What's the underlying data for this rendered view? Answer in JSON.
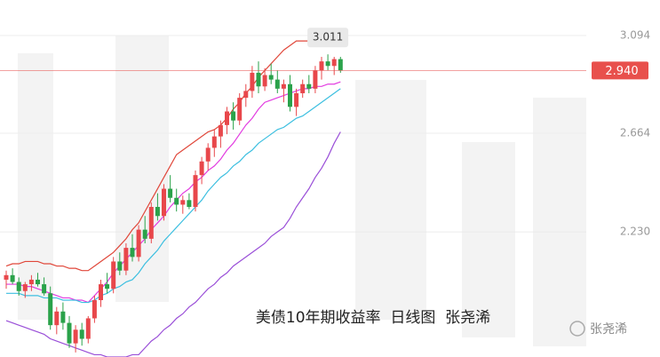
{
  "chart_data": {
    "type": "candlestick",
    "caption": "美债10年期收益率  日线图  张尧浠",
    "watermark": "张尧浠",
    "ylim": [
      1.68,
      3.25
    ],
    "yticks": [
      3.094,
      2.664,
      {
        "value": 2.23,
        "label": "2.230"
      }
    ],
    "grid": true,
    "up_color": "#e8474b",
    "down_color": "#2aa24a",
    "current_price": {
      "value": 2.94,
      "label": "2.940"
    },
    "current_color": "#e8504c",
    "high_annotation": 3.011,
    "open": [
      2.02,
      2.04,
      2.01,
      1.97,
      2.0,
      2.02,
      2.0,
      1.96,
      1.82,
      1.88,
      1.83,
      1.74,
      1.8,
      1.76,
      1.85,
      1.93,
      2.0,
      1.98,
      2.1,
      2.06,
      2.16,
      2.12,
      2.24,
      2.2,
      2.34,
      2.3,
      2.42,
      2.38,
      2.35,
      2.37,
      2.34,
      2.48,
      2.54,
      2.6,
      2.65,
      2.7,
      2.76,
      2.72,
      2.82,
      2.85,
      2.93,
      2.87,
      2.92,
      2.9,
      2.86,
      2.88,
      2.78,
      2.84,
      2.88,
      2.86,
      2.94,
      2.98,
      2.96,
      2.99
    ],
    "high": [
      2.06,
      2.07,
      2.03,
      2.01,
      2.04,
      2.05,
      2.03,
      1.99,
      1.9,
      1.92,
      1.86,
      1.82,
      1.83,
      1.86,
      1.95,
      2.02,
      2.05,
      2.12,
      2.14,
      2.18,
      2.22,
      2.26,
      2.3,
      2.36,
      2.4,
      2.44,
      2.48,
      2.42,
      2.39,
      2.4,
      2.5,
      2.56,
      2.62,
      2.68,
      2.72,
      2.78,
      2.8,
      2.84,
      2.88,
      2.96,
      2.98,
      2.95,
      2.97,
      2.94,
      2.9,
      2.92,
      2.86,
      2.9,
      2.92,
      2.96,
      3.0,
      3.011,
      3.0,
      3.0
    ],
    "low": [
      1.98,
      2.0,
      1.95,
      1.94,
      1.97,
      1.99,
      1.95,
      1.8,
      1.78,
      1.8,
      1.72,
      1.7,
      1.73,
      1.74,
      1.83,
      1.9,
      1.96,
      1.96,
      2.04,
      2.04,
      2.1,
      2.1,
      2.18,
      2.18,
      2.28,
      2.28,
      2.36,
      2.32,
      2.31,
      2.33,
      2.32,
      2.44,
      2.5,
      2.56,
      2.6,
      2.66,
      2.68,
      2.7,
      2.78,
      2.82,
      2.84,
      2.85,
      2.88,
      2.84,
      2.8,
      2.76,
      2.74,
      2.82,
      2.84,
      2.84,
      2.9,
      2.94,
      2.92,
      2.93
    ],
    "close": [
      2.04,
      2.01,
      1.97,
      2.0,
      2.02,
      2.0,
      1.96,
      1.82,
      1.88,
      1.83,
      1.74,
      1.8,
      1.76,
      1.85,
      1.93,
      2.0,
      1.98,
      2.1,
      2.06,
      2.16,
      2.12,
      2.24,
      2.2,
      2.34,
      2.3,
      2.42,
      2.38,
      2.35,
      2.37,
      2.34,
      2.48,
      2.54,
      2.6,
      2.65,
      2.7,
      2.76,
      2.72,
      2.82,
      2.85,
      2.93,
      2.87,
      2.92,
      2.9,
      2.86,
      2.88,
      2.78,
      2.84,
      2.88,
      2.86,
      2.94,
      2.98,
      2.96,
      2.99,
      2.94
    ],
    "lines": [
      {
        "color": "#e0473a",
        "values": [
          2.08,
          2.09,
          2.09,
          2.1,
          2.1,
          2.1,
          2.09,
          2.09,
          2.08,
          2.08,
          2.07,
          2.07,
          2.06,
          2.06,
          2.08,
          2.1,
          2.12,
          2.14,
          2.17,
          2.2,
          2.24,
          2.27,
          2.32,
          2.37,
          2.42,
          2.47,
          2.52,
          2.57,
          2.59,
          2.61,
          2.63,
          2.65,
          2.67,
          2.68,
          2.7,
          2.73,
          2.77,
          2.8,
          2.84,
          2.87,
          2.91,
          2.94,
          2.97,
          3.0,
          3.03,
          3.05,
          3.07,
          3.07,
          3.07,
          3.07,
          3.06,
          3.06,
          3.06,
          3.06
        ]
      },
      {
        "color": "#e23ce0",
        "values": [
          2.0,
          2.0,
          2.0,
          1.99,
          1.99,
          1.98,
          1.97,
          1.96,
          1.95,
          1.94,
          1.94,
          1.93,
          1.93,
          1.92,
          1.95,
          1.98,
          2.01,
          2.05,
          2.08,
          2.11,
          2.14,
          2.17,
          2.2,
          2.24,
          2.27,
          2.3,
          2.34,
          2.37,
          2.4,
          2.42,
          2.45,
          2.47,
          2.5,
          2.52,
          2.55,
          2.59,
          2.62,
          2.66,
          2.7,
          2.73,
          2.77,
          2.8,
          2.81,
          2.82,
          2.83,
          2.84,
          2.85,
          2.86,
          2.86,
          2.87,
          2.87,
          2.88,
          2.88,
          2.89
        ]
      },
      {
        "color": "#9a4fd8",
        "values": [
          1.84,
          1.83,
          1.82,
          1.81,
          1.8,
          1.79,
          1.78,
          1.76,
          1.75,
          1.74,
          1.73,
          1.72,
          1.71,
          1.7,
          1.69,
          1.69,
          1.68,
          1.68,
          1.68,
          1.68,
          1.69,
          1.69,
          1.72,
          1.75,
          1.77,
          1.8,
          1.82,
          1.85,
          1.87,
          1.9,
          1.92,
          1.95,
          1.98,
          2.0,
          2.03,
          2.05,
          2.08,
          2.1,
          2.12,
          2.14,
          2.16,
          2.18,
          2.21,
          2.23,
          2.25,
          2.29,
          2.34,
          2.38,
          2.42,
          2.47,
          2.51,
          2.56,
          2.62,
          2.67
        ]
      },
      {
        "color": "#3cbfe0",
        "values": [
          1.96,
          1.96,
          1.96,
          1.95,
          1.95,
          1.95,
          1.94,
          1.94,
          1.94,
          1.93,
          1.93,
          1.93,
          1.92,
          1.92,
          1.93,
          1.95,
          1.96,
          1.98,
          1.99,
          2.01,
          2.02,
          2.05,
          2.09,
          2.12,
          2.15,
          2.19,
          2.22,
          2.25,
          2.28,
          2.31,
          2.34,
          2.37,
          2.41,
          2.44,
          2.47,
          2.49,
          2.52,
          2.54,
          2.57,
          2.59,
          2.62,
          2.64,
          2.66,
          2.68,
          2.69,
          2.71,
          2.73,
          2.74,
          2.76,
          2.78,
          2.8,
          2.82,
          2.84,
          2.86
        ]
      }
    ]
  }
}
